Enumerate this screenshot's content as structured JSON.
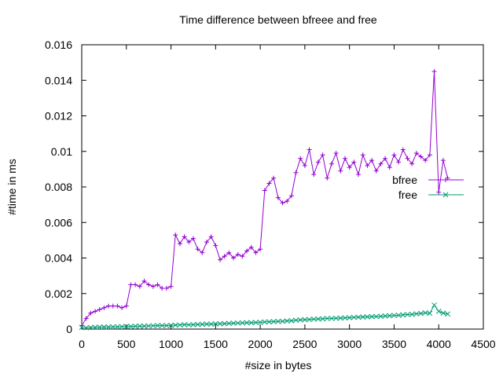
{
  "chart_data": {
    "type": "line",
    "title": "Time difference between bfreee and free",
    "xlabel": "#size in bytes",
    "ylabel": "#time in ms",
    "xlim": [
      0,
      4500
    ],
    "ylim": [
      0,
      0.016
    ],
    "x_ticks": [
      "0",
      "500",
      "1000",
      "1500",
      "2000",
      "2500",
      "3000",
      "3500",
      "4000",
      "4500"
    ],
    "y_ticks": [
      "0",
      "0.002",
      "0.004",
      "0.006",
      "0.008",
      "0.01",
      "0.012",
      "0.014",
      "0.016"
    ],
    "grid": false,
    "legend_position": "right",
    "series": [
      {
        "name": "bfree",
        "color": "#9400d3",
        "marker": "plus",
        "x": [
          0,
          50,
          100,
          150,
          200,
          250,
          300,
          350,
          400,
          450,
          500,
          550,
          600,
          650,
          700,
          750,
          800,
          850,
          900,
          950,
          1000,
          1050,
          1100,
          1150,
          1200,
          1250,
          1300,
          1350,
          1400,
          1450,
          1500,
          1550,
          1600,
          1650,
          1700,
          1750,
          1800,
          1850,
          1900,
          1950,
          2000,
          2050,
          2100,
          2150,
          2200,
          2250,
          2300,
          2350,
          2400,
          2450,
          2500,
          2550,
          2600,
          2650,
          2700,
          2750,
          2800,
          2850,
          2900,
          2950,
          3000,
          3050,
          3100,
          3150,
          3200,
          3250,
          3300,
          3350,
          3400,
          3450,
          3500,
          3550,
          3600,
          3650,
          3700,
          3750,
          3800,
          3850,
          3900,
          3950,
          4000,
          4050,
          4100
        ],
        "values": [
          0.0002,
          0.0006,
          0.0009,
          0.001,
          0.0011,
          0.0012,
          0.0013,
          0.0013,
          0.0013,
          0.0012,
          0.0013,
          0.0025,
          0.0025,
          0.0024,
          0.0027,
          0.0025,
          0.0024,
          0.0025,
          0.0023,
          0.0023,
          0.0024,
          0.0053,
          0.0048,
          0.0052,
          0.0049,
          0.0051,
          0.0045,
          0.0043,
          0.0049,
          0.0052,
          0.0047,
          0.0039,
          0.0041,
          0.0043,
          0.004,
          0.0042,
          0.0041,
          0.0044,
          0.0046,
          0.0043,
          0.0045,
          0.0078,
          0.0082,
          0.0085,
          0.0074,
          0.0071,
          0.0072,
          0.0075,
          0.0088,
          0.0096,
          0.0092,
          0.0101,
          0.0087,
          0.0094,
          0.0098,
          0.0085,
          0.0093,
          0.0099,
          0.0089,
          0.0096,
          0.0091,
          0.0094,
          0.0087,
          0.0098,
          0.0092,
          0.0095,
          0.0089,
          0.0093,
          0.0096,
          0.0091,
          0.0098,
          0.0094,
          0.0101,
          0.0096,
          0.0093,
          0.0099,
          0.0097,
          0.0095,
          0.0098,
          0.0145,
          0.0077,
          0.0095,
          0.0085
        ]
      },
      {
        "name": "free",
        "color": "#009e73",
        "marker": "cross",
        "x": [
          0,
          50,
          100,
          150,
          200,
          250,
          300,
          350,
          400,
          450,
          500,
          550,
          600,
          650,
          700,
          750,
          800,
          850,
          900,
          950,
          1000,
          1050,
          1100,
          1150,
          1200,
          1250,
          1300,
          1350,
          1400,
          1450,
          1500,
          1550,
          1600,
          1650,
          1700,
          1750,
          1800,
          1850,
          1900,
          1950,
          2000,
          2050,
          2100,
          2150,
          2200,
          2250,
          2300,
          2350,
          2400,
          2450,
          2500,
          2550,
          2600,
          2650,
          2700,
          2750,
          2800,
          2850,
          2900,
          2950,
          3000,
          3050,
          3100,
          3150,
          3200,
          3250,
          3300,
          3350,
          3400,
          3450,
          3500,
          3550,
          3600,
          3650,
          3700,
          3750,
          3800,
          3850,
          3900,
          3950,
          4000,
          4050,
          4100
        ],
        "values": [
          0.0001,
          8e-05,
          9e-05,
          0.0001,
          0.00011,
          0.00012,
          0.00012,
          0.00013,
          0.00013,
          0.00014,
          0.00015,
          0.00015,
          0.00016,
          0.00017,
          0.00017,
          0.00018,
          0.00019,
          0.0002,
          0.0002,
          0.0002,
          0.00021,
          0.00022,
          0.00023,
          0.00025,
          0.00024,
          0.00025,
          0.00026,
          0.00027,
          0.00028,
          0.00028,
          0.0003,
          0.0003,
          0.00031,
          0.00032,
          0.00033,
          0.00034,
          0.00035,
          0.00036,
          0.00036,
          0.00037,
          0.00038,
          0.0004,
          0.00041,
          0.00042,
          0.00043,
          0.00044,
          0.00046,
          0.00047,
          0.0005,
          0.00052,
          0.00053,
          0.00054,
          0.00056,
          0.00057,
          0.00058,
          0.0006,
          0.0006,
          0.00061,
          0.00062,
          0.00063,
          0.00064,
          0.00066,
          0.00067,
          0.00068,
          0.00069,
          0.0007,
          0.00071,
          0.00072,
          0.00074,
          0.00075,
          0.00077,
          0.00078,
          0.0008,
          0.00082,
          0.00083,
          0.00086,
          0.00088,
          0.00092,
          0.00089,
          0.00135,
          0.001,
          0.0009,
          0.00085
        ]
      }
    ]
  }
}
